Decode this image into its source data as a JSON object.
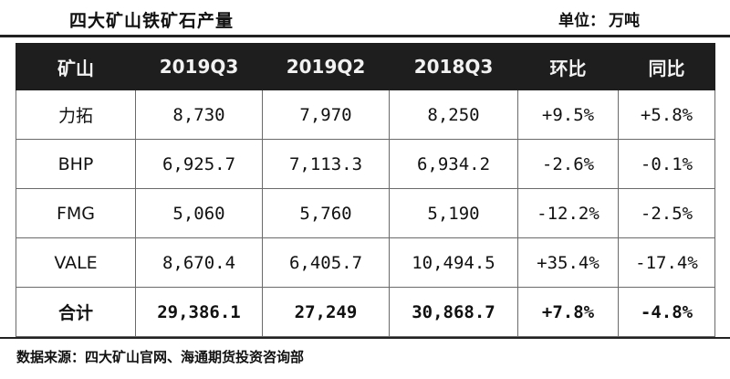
{
  "title": "四大矿山铁矿石产量",
  "unit": {
    "label": "单位：",
    "value": "万吨"
  },
  "table": {
    "headers": [
      "矿山",
      "2019Q3",
      "2019Q2",
      "2018Q3",
      "环比",
      "同比"
    ],
    "rows": [
      [
        "力拓",
        "8,730",
        "7,970",
        "8,250",
        "+9.5%",
        "+5.8%"
      ],
      [
        "BHP",
        "6,925.7",
        "7,113.3",
        "6,934.2",
        "-2.6%",
        "-0.1%"
      ],
      [
        "FMG",
        "5,060",
        "5,760",
        "5,190",
        "-12.2%",
        "-2.5%"
      ],
      [
        "VALE",
        "8,670.4",
        "6,405.7",
        "10,494.5",
        "+35.4%",
        "-17.4%"
      ],
      [
        "合计",
        "29,386.1",
        "27,249",
        "30,868.7",
        "+7.8%",
        "-4.8%"
      ]
    ]
  },
  "source": "数据来源：四大矿山官网、海通期货投资咨询部"
}
